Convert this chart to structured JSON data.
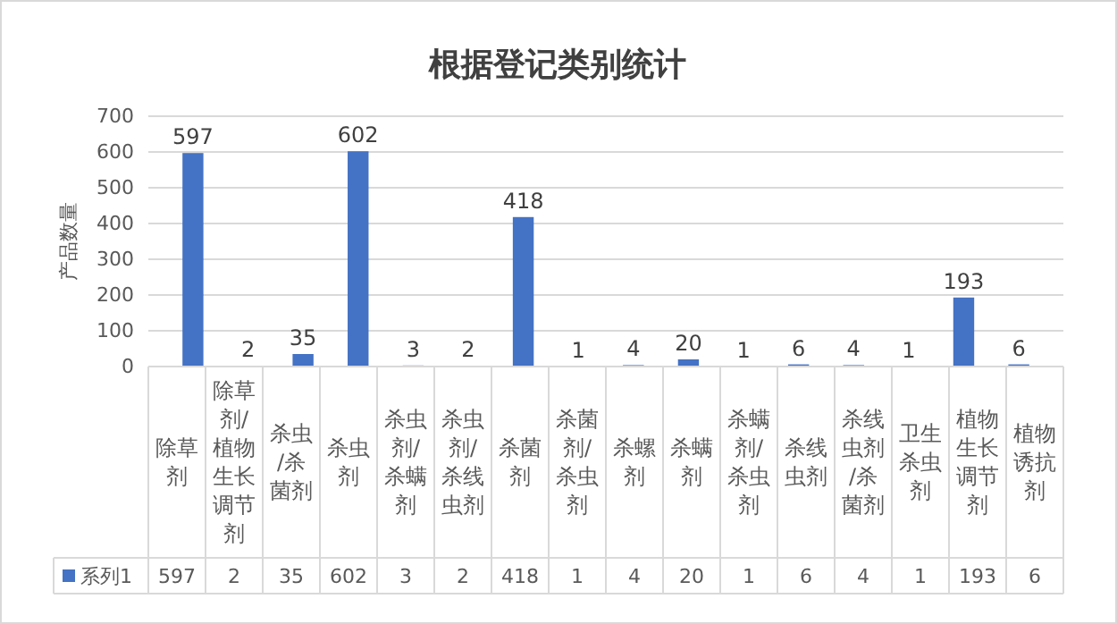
{
  "chart_data": {
    "type": "bar",
    "title": "根据登记类别统计",
    "ylabel": "产品数量",
    "categories": [
      "除草剂",
      "除草剂/植物生长调节剂",
      "杀虫/杀菌剂",
      "杀虫剂",
      "杀虫剂/杀螨剂",
      "杀虫剂/杀线虫剂",
      "杀菌剂",
      "杀菌剂/杀虫剂",
      "杀螺剂",
      "杀螨剂",
      "杀螨剂/杀虫剂",
      "杀线虫剂",
      "杀线虫剂/杀菌剂",
      "卫生杀虫剂",
      "植物生长调节剂",
      "植物诱抗剂"
    ],
    "series": [
      {
        "name": "系列1",
        "color": "#4472c4",
        "values": [
          597,
          2,
          35,
          602,
          3,
          2,
          418,
          1,
          4,
          20,
          1,
          6,
          4,
          1,
          193,
          6
        ],
        "value_labels": [
          "597",
          "2",
          "35",
          "602",
          "3",
          "2",
          "418",
          "1",
          "4",
          "20",
          "1",
          "6",
          "4",
          "1",
          "193",
          "6"
        ]
      }
    ],
    "ylim": [
      0,
      700
    ],
    "yticks": [
      0,
      100,
      200,
      300,
      400,
      500,
      600,
      700
    ],
    "grid": "y",
    "data_labels": true,
    "annotations": [
      "597",
      "2",
      "35",
      "602",
      "3",
      "2",
      "418",
      "1",
      "4",
      "20",
      "1",
      "6",
      "4",
      "1",
      "193",
      "6"
    ],
    "legend": "bottom"
  }
}
